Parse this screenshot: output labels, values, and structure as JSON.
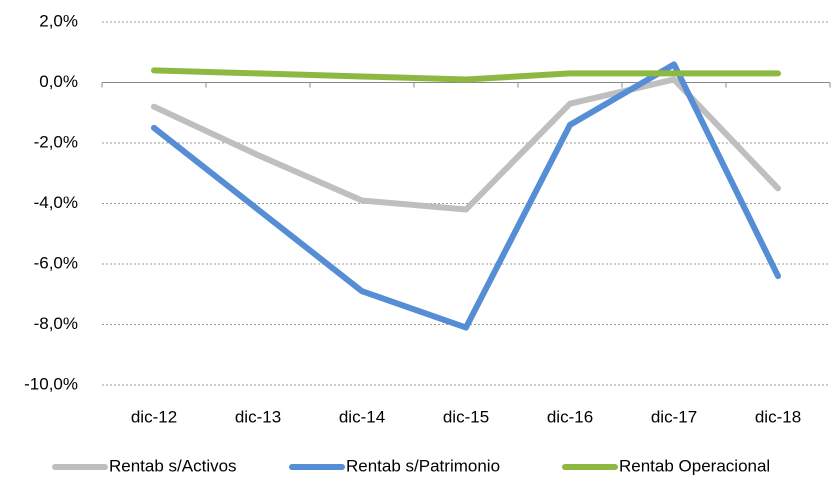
{
  "chart_data": {
    "type": "line",
    "categories": [
      "dic-12",
      "dic-13",
      "dic-14",
      "dic-15",
      "dic-16",
      "dic-17",
      "dic-18"
    ],
    "series": [
      {
        "name": "Rentab s/Activos",
        "color": "#bfbfbf",
        "values": [
          -0.8,
          -2.4,
          -3.9,
          -4.2,
          -0.7,
          0.1,
          -3.5
        ]
      },
      {
        "name": "Rentab s/Patrimonio",
        "color": "#558ed5",
        "values": [
          -1.5,
          -4.2,
          -6.9,
          -8.1,
          -1.4,
          0.6,
          -6.4
        ]
      },
      {
        "name": "Rentab Operacional",
        "color": "#8db943",
        "values": [
          0.4,
          0.3,
          0.2,
          0.1,
          0.3,
          0.3,
          0.3
        ]
      }
    ],
    "ylim": [
      -10,
      2
    ],
    "yticks": [
      {
        "value": -10,
        "label": "-10,0%"
      },
      {
        "value": -8,
        "label": "-8,0%"
      },
      {
        "value": -6,
        "label": "-6,0%"
      },
      {
        "value": -4,
        "label": "-4,0%"
      },
      {
        "value": -2,
        "label": "-2,0%"
      },
      {
        "value": 0,
        "label": "0,0%"
      },
      {
        "value": 2,
        "label": "2,0%"
      }
    ],
    "grid": true,
    "legend": "bottom"
  }
}
